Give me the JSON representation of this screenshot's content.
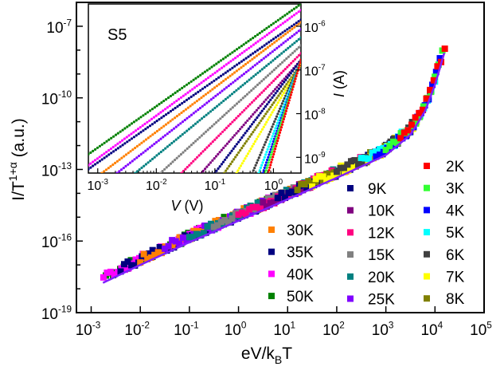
{
  "chart_data": [
    {
      "type": "scatter",
      "title": "",
      "xlabel": "eV/k_BT",
      "xlabel_main": "eV/k",
      "xlabel_sub": "B",
      "xlabel_tail": "T",
      "ylabel_main": "I/T",
      "ylabel_sup": "1+α",
      "ylabel_tail": " (a.u.)",
      "xscale": "log",
      "yscale": "log",
      "xlim_log10": [
        -3.3,
        5
      ],
      "ylim_log10": [
        -19,
        -6
      ],
      "x_ticks": [
        {
          "exp": -3,
          "label": "10",
          "sup": "-3"
        },
        {
          "exp": -2,
          "label": "10",
          "sup": "-2"
        },
        {
          "exp": -1,
          "label": "10",
          "sup": "-1"
        },
        {
          "exp": 0,
          "label": "10",
          "sup": "0"
        },
        {
          "exp": 1,
          "label": "10",
          "sup": "1"
        },
        {
          "exp": 2,
          "label": "10",
          "sup": "2"
        },
        {
          "exp": 3,
          "label": "10",
          "sup": "3"
        },
        {
          "exp": 4,
          "label": "10",
          "sup": "4"
        },
        {
          "exp": 5,
          "label": "10",
          "sup": "5"
        }
      ],
      "y_ticks": [
        {
          "exp": -7,
          "label": "10",
          "sup": "-7"
        },
        {
          "exp": -10,
          "label": "10",
          "sup": "-10"
        },
        {
          "exp": -13,
          "label": "10",
          "sup": "-13"
        },
        {
          "exp": -16,
          "label": "10",
          "sup": "-16"
        },
        {
          "exp": -19,
          "label": "10",
          "sup": "-19"
        }
      ],
      "scaling_curve_log10": [
        [
          -2.76,
          -17.6
        ],
        [
          -2,
          -16.85
        ],
        [
          -1,
          -15.9
        ],
        [
          0,
          -15.0
        ],
        [
          1,
          -14.1
        ],
        [
          2,
          -13.2
        ],
        [
          3,
          -12.25
        ],
        [
          3.5,
          -11.4
        ],
        [
          3.8,
          -10.4
        ],
        [
          4.0,
          -9.3
        ],
        [
          4.2,
          -7.9
        ]
      ],
      "fit_line_color": "#7f1fff",
      "legend_placement": "bottom-right",
      "series": [
        {
          "name": "2K",
          "color": "#ff0000",
          "x_range_log10": [
            3.3,
            4.2
          ]
        },
        {
          "name": "3K",
          "color": "#33ff33",
          "x_range_log10": [
            3.0,
            4.15
          ]
        },
        {
          "name": "4K",
          "color": "#0000ff",
          "x_range_log10": [
            2.8,
            4.1
          ]
        },
        {
          "name": "5K",
          "color": "#00ffff",
          "x_range_log10": [
            2.5,
            4.0
          ]
        },
        {
          "name": "6K",
          "color": "#404040",
          "x_range_log10": [
            2.0,
            3.9
          ]
        },
        {
          "name": "7K",
          "color": "#ffff00",
          "x_range_log10": [
            1.5,
            3.7
          ]
        },
        {
          "name": "8K",
          "color": "#808000",
          "x_range_log10": [
            1.2,
            3.5
          ]
        },
        {
          "name": "9K",
          "color": "#000080",
          "x_range_log10": [
            0.8,
            3.3
          ]
        },
        {
          "name": "10K",
          "color": "#800080",
          "x_range_log10": [
            0.5,
            3.0
          ]
        },
        {
          "name": "12K",
          "color": "#ff0080",
          "x_range_log10": [
            0.0,
            2.7
          ]
        },
        {
          "name": "15K",
          "color": "#808080",
          "x_range_log10": [
            -0.5,
            2.3
          ]
        },
        {
          "name": "20K",
          "color": "#008080",
          "x_range_log10": [
            -1.0,
            2.0
          ]
        },
        {
          "name": "25K",
          "color": "#8000ff",
          "x_range_log10": [
            -1.5,
            1.6
          ]
        },
        {
          "name": "30K",
          "color": "#ff8000",
          "x_range_log10": [
            -2.0,
            1.2
          ]
        },
        {
          "name": "35K",
          "color": "#000080",
          "x_range_log10": [
            -2.4,
            1.0
          ]
        },
        {
          "name": "40K",
          "color": "#ff00ff",
          "x_range_log10": [
            -2.75,
            0.9
          ]
        },
        {
          "name": "50K",
          "color": "#008000",
          "x_range_log10": [
            -2.7,
            0.8
          ]
        }
      ]
    },
    {
      "type": "scatter",
      "title": "S5",
      "xlabel_italic": "V",
      "xlabel_tail": " (V)",
      "ylabel_italic": "I",
      "ylabel_tail": " (A)",
      "xscale": "log",
      "yscale": "log",
      "xlim_log10": [
        -3.16,
        0.47
      ],
      "ylim_log10": [
        -9.36,
        -5.49
      ],
      "x_ticks": [
        {
          "exp": -3,
          "label": "10",
          "sup": "-3"
        },
        {
          "exp": -2,
          "label": "10",
          "sup": "-2"
        },
        {
          "exp": -1,
          "label": "10",
          "sup": "-1"
        },
        {
          "exp": 0,
          "label": "10",
          "sup": "0"
        }
      ],
      "y_ticks": [
        {
          "exp": -6,
          "label": "10",
          "sup": "-6"
        },
        {
          "exp": -7,
          "label": "10",
          "sup": "-7"
        },
        {
          "exp": -8,
          "label": "10",
          "sup": "-8"
        },
        {
          "exp": -9,
          "label": "10",
          "sup": "-9"
        }
      ],
      "series": [
        {
          "name": "50K",
          "color": "#008000",
          "start_log10": [
            -3.16,
            -8.93
          ],
          "end_log10": [
            0.47,
            -5.49
          ]
        },
        {
          "name": "40K",
          "color": "#ff00ff",
          "start_log10": [
            -3.16,
            -9.18
          ],
          "end_log10": [
            0.47,
            -5.63
          ]
        },
        {
          "name": "35K",
          "color": "#000080",
          "start_log10": [
            -3.16,
            -9.27
          ],
          "end_log10": [
            0.47,
            -5.85
          ]
        },
        {
          "name": "30K",
          "color": "#ff8000",
          "start_log10": [
            -2.93,
            -9.36
          ],
          "end_log10": [
            0.47,
            -5.91
          ]
        },
        {
          "name": "25K",
          "color": "#8000ff",
          "start_log10": [
            -2.67,
            -9.36
          ],
          "end_log10": [
            0.47,
            -6.07
          ]
        },
        {
          "name": "20K",
          "color": "#008080",
          "start_log10": [
            -2.36,
            -9.36
          ],
          "end_log10": [
            0.47,
            -6.26
          ]
        },
        {
          "name": "15K",
          "color": "#808080",
          "start_log10": [
            -1.93,
            -9.36
          ],
          "end_log10": [
            0.47,
            -6.44
          ]
        },
        {
          "name": "12K",
          "color": "#ff0080",
          "start_log10": [
            -1.57,
            -9.36
          ],
          "end_log10": [
            0.47,
            -6.62
          ]
        },
        {
          "name": "10K",
          "color": "#800080",
          "start_log10": [
            -1.23,
            -9.36
          ],
          "end_log10": [
            0.47,
            -6.77
          ]
        },
        {
          "name": "9K",
          "color": "#000080",
          "start_log10": [
            -1.0,
            -9.36
          ],
          "end_log10": [
            0.47,
            -6.77
          ]
        },
        {
          "name": "8K",
          "color": "#808000",
          "start_log10": [
            -0.84,
            -9.36
          ],
          "end_log10": [
            0.47,
            -6.86
          ]
        },
        {
          "name": "7K",
          "color": "#ffff00",
          "start_log10": [
            -0.63,
            -9.36
          ],
          "end_log10": [
            0.47,
            -6.86
          ]
        },
        {
          "name": "6K",
          "color": "#404040",
          "start_log10": [
            -0.36,
            -9.36
          ],
          "end_log10": [
            0.47,
            -6.77
          ]
        },
        {
          "name": "5K",
          "color": "#00ffff",
          "start_log10": [
            -0.25,
            -9.36
          ],
          "end_log10": [
            0.47,
            -6.77
          ]
        },
        {
          "name": "4K",
          "color": "#0000ff",
          "start_log10": [
            -0.18,
            -9.36
          ],
          "end_log10": [
            0.47,
            -6.77
          ]
        },
        {
          "name": "3K",
          "color": "#33ff33",
          "start_log10": [
            -0.14,
            -9.36
          ],
          "end_log10": [
            0.47,
            -6.77
          ]
        },
        {
          "name": "2K",
          "color": "#ff0000",
          "start_log10": [
            -0.09,
            -9.36
          ],
          "end_log10": [
            0.47,
            -6.77
          ]
        }
      ]
    }
  ]
}
